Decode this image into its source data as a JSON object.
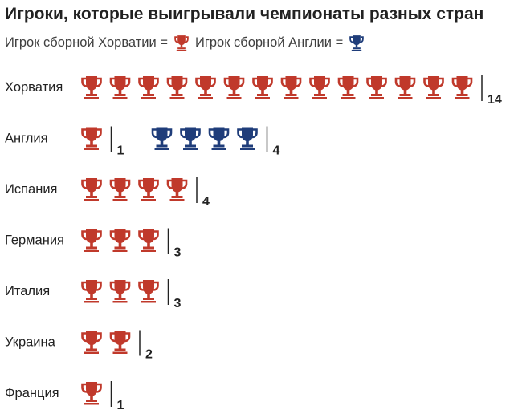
{
  "title": "Игроки, которые выигрывали чемпионаты разных стран",
  "legend": {
    "croatia_label": "Игрок сборной Хорватии =",
    "england_label": "Игрок сборной Англии ="
  },
  "colors": {
    "croatia": "#c0392b",
    "england": "#1f3d7a",
    "divider": "#222222"
  },
  "icon": "trophy-icon",
  "chart_data": {
    "type": "pictogram",
    "title": "Игроки, которые выигрывали чемпионаты разных стран",
    "series": [
      {
        "name": "Игрок сборной Хорватии",
        "color": "#c0392b"
      },
      {
        "name": "Игрок сборной Англии",
        "color": "#1f3d7a"
      }
    ],
    "rows": [
      {
        "country": "Хорватия",
        "croatia": 14,
        "england": null
      },
      {
        "country": "Англия",
        "croatia": 1,
        "england": 4
      },
      {
        "country": "Испания",
        "croatia": 4,
        "england": null
      },
      {
        "country": "Германия",
        "croatia": 3,
        "england": null
      },
      {
        "country": "Италия",
        "croatia": 3,
        "england": null
      },
      {
        "country": "Украина",
        "croatia": 2,
        "england": null
      },
      {
        "country": "Франция",
        "croatia": 1,
        "england": null
      }
    ]
  }
}
